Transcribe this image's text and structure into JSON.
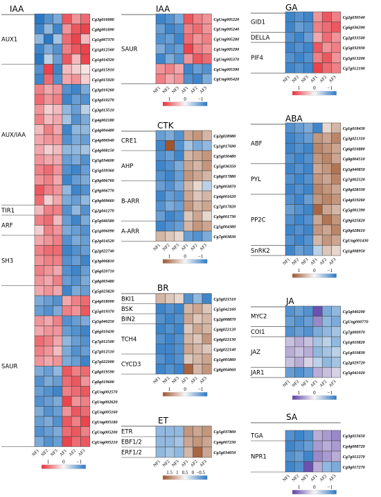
{
  "column_labels": [
    "NF1",
    "NF2",
    "NF3",
    "AF1",
    "AF2",
    "AF3"
  ],
  "palette": {
    "red": "#e8303a",
    "mid": "#f7f7f7",
    "blue": "#2b78c5",
    "brown": "#a0552d",
    "purple": "#5b3fa8"
  },
  "chart_data": [
    {
      "type": "heatmap",
      "title": "IAA",
      "groups": [
        {
          "label": "AUX1",
          "genes": [
            "Cg3g016080",
            "Cg8g001890",
            "Cg1g007370",
            "Cg1g012560",
            "Cg1g014320"
          ]
        },
        {
          "label": "AUX/IAA",
          "genes": [
            "Cg1g015910",
            "Cg1g015920",
            "Cg3g010260",
            "Cg3g010270",
            "Cg3g013510",
            "Cg4g002180",
            "Cg4g004480",
            "Cg4g006940",
            "Cg4g008150",
            "Cg5g034600",
            "Cg5g039360",
            "Cg9g006760",
            "Cg9g006770",
            "Cg9g009660"
          ]
        },
        {
          "label": "TIR1",
          "genes": [
            "Cg2g041270"
          ]
        },
        {
          "label": "ARF",
          "genes": [
            "Cg5g040580",
            "Cg1g006090"
          ]
        },
        {
          "label": "SH3",
          "genes": [
            "Cg2g014520",
            "Cg2g022740",
            "Cg3g006810",
            "Cg6g020710",
            "Cg8g003480"
          ]
        },
        {
          "label": "SAUR",
          "genes": [
            "Cg5g023820",
            "Cg4g018000",
            "Cg5g019370",
            "Cg5g040250",
            "Cg6g010430",
            "Cg7g012500",
            "Cg7g012510",
            "Cg7g022000",
            "Cg8g019590",
            "Cg8g019600",
            "CgUng002570",
            "CgUng002620",
            "CgUng005160",
            "CgUng005180",
            "CgUng005200",
            "CgUng005210"
          ]
        }
      ],
      "values": [
        [
          -1,
          -0.8,
          -0.6,
          0.8,
          0.5,
          0.7
        ],
        [
          -0.9,
          -0.5,
          -0.9,
          0.5,
          0.8,
          0.9
        ],
        [
          -0.5,
          -1,
          -0.4,
          0.7,
          0.9,
          0.3
        ],
        [
          -0.9,
          -0.6,
          -0.8,
          0.6,
          0.8,
          0.9
        ],
        [
          -1,
          -0.3,
          -0.7,
          0.8,
          0.3,
          0.9
        ],
        [
          -0.8,
          0.9,
          -0.9,
          0.3,
          0.2,
          0.1
        ],
        [
          -0.9,
          0.7,
          -0.8,
          0.4,
          0.5,
          0.2
        ],
        [
          0.6,
          0.4,
          0.5,
          -0.8,
          -0.9,
          -0.6
        ],
        [
          0.7,
          0.5,
          0.6,
          -0.9,
          -0.7,
          -0.8
        ],
        [
          0.5,
          0.2,
          0.3,
          -0.5,
          -0.7,
          -0.3
        ],
        [
          0.6,
          0.3,
          0.4,
          -0.4,
          -0.8,
          -0.6
        ],
        [
          0.3,
          0.6,
          0.4,
          -0.9,
          -0.5,
          -0.5
        ],
        [
          0.4,
          0.5,
          0.5,
          -0.8,
          -0.6,
          -0.7
        ],
        [
          0.4,
          0.2,
          0.3,
          -0.5,
          -0.5,
          -0.4
        ],
        [
          0.5,
          0.4,
          0.4,
          -0.7,
          -0.6,
          -0.8
        ],
        [
          0.6,
          0.7,
          0.5,
          -0.8,
          -0.9,
          -0.7
        ],
        [
          0.5,
          0.6,
          0.4,
          -0.9,
          -0.7,
          -0.6
        ],
        [
          0.8,
          0.6,
          0.5,
          -0.5,
          -0.9,
          -0.8
        ],
        [
          0.7,
          0.2,
          0.4,
          -0.6,
          -0.7,
          -0.5
        ],
        [
          0.3,
          0.6,
          0.6,
          -0.8,
          -0.5,
          -0.8
        ],
        [
          0.6,
          0.7,
          0.3,
          -0.7,
          -0.9,
          -0.6
        ],
        [
          0.2,
          0.6,
          0.5,
          -0.6,
          -0.7,
          -0.8
        ],
        [
          0.4,
          0.5,
          0.6,
          -0.8,
          -0.6,
          -0.7
        ],
        [
          0.6,
          0.7,
          0.7,
          -0.9,
          -0.8,
          -0.7
        ],
        [
          0.5,
          0.6,
          0.6,
          -0.8,
          -0.7,
          -0.9
        ],
        [
          0.6,
          0.5,
          0.4,
          -0.8,
          -0.9,
          -0.7
        ],
        [
          0.5,
          0.4,
          0.6,
          -0.7,
          -0.8,
          -0.6
        ],
        [
          0.4,
          0.5,
          0.4,
          -0.9,
          -0.6,
          -0.7
        ],
        [
          -0.6,
          -0.7,
          -0.8,
          0.4,
          0.6,
          0.7
        ],
        [
          -0.7,
          -0.8,
          -0.6,
          0.6,
          0.5,
          0.8
        ],
        [
          0.5,
          0.4,
          0.6,
          -0.8,
          -0.7,
          -0.6
        ],
        [
          0.4,
          0.5,
          0.5,
          -0.7,
          -0.8,
          -0.9
        ],
        [
          0.7,
          0.6,
          0.4,
          -0.5,
          -0.7,
          -0.8
        ],
        [
          0.6,
          0.5,
          0.3,
          -0.6,
          -0.8,
          -0.7
        ],
        [
          0.5,
          0.4,
          0.5,
          -0.6,
          -0.7,
          -0.9
        ],
        [
          -0.6,
          -0.7,
          -0.5,
          0.8,
          0.6,
          0.7
        ],
        [
          -0.8,
          -0.6,
          -0.7,
          0.7,
          0.8,
          0.5
        ],
        [
          -0.7,
          -0.8,
          -0.9,
          0.6,
          0.7,
          0.8
        ],
        [
          -0.8,
          -0.7,
          -0.6,
          0.9,
          0.5,
          0.6
        ],
        [
          -0.6,
          -0.8,
          -0.7,
          0.5,
          0.8,
          0.7
        ],
        [
          -0.7,
          -0.6,
          -0.8,
          0.8,
          0.6,
          0.9
        ],
        [
          -0.8,
          -0.7,
          -0.6,
          0.7,
          0.8,
          0.6
        ],
        [
          -0.6,
          -0.8,
          -0.7,
          0.9,
          0.7,
          0.8
        ]
      ],
      "legend": {
        "ticks": [
          "1",
          "0",
          "−1"
        ],
        "scale": "red-blue"
      }
    },
    {
      "type": "heatmap",
      "title": "IAA",
      "groups": [
        {
          "label": "SAUR",
          "genes": [
            "CgUng005220",
            "CgUng005240",
            "CgUng005280",
            "CgUng005290",
            "CgUng005370",
            "CgUng005390",
            "CgUng005420"
          ]
        }
      ],
      "values": [
        [
          -0.9,
          -0.8,
          -0.6,
          0.8,
          0.6,
          0.5
        ],
        [
          -0.7,
          -0.9,
          -0.8,
          0.6,
          0.7,
          0.5
        ],
        [
          -0.8,
          -0.7,
          -0.9,
          0.7,
          0.5,
          0.6
        ],
        [
          -0.6,
          -0.8,
          -0.7,
          0.9,
          0.6,
          0.5
        ],
        [
          -0.9,
          -0.6,
          -0.8,
          0.5,
          0.8,
          0.7
        ],
        [
          0.5,
          0.6,
          0.4,
          -0.9,
          -0.7,
          -0.8
        ],
        [
          0.6,
          0.4,
          0.5,
          -0.8,
          -0.9,
          -0.6
        ]
      ],
      "legend": {
        "ticks": [
          "1",
          "0",
          "−1"
        ],
        "scale": "red-blue"
      }
    },
    {
      "type": "heatmap",
      "title": "CTK",
      "groups": [
        {
          "label": "CRE1",
          "genes": [
            "Cg2g028980",
            "Cg1g017690"
          ]
        },
        {
          "label": "AHP",
          "genes": [
            "Cg5g030480",
            "Cg5g036350",
            "Cg8g017880"
          ]
        },
        {
          "label": "B-ARR",
          "genes": [
            "Cg9g003870",
            "Cg4g001620",
            "Cg7g017820",
            "Cg9g001730"
          ]
        },
        {
          "label": "A-ARR",
          "genes": [
            "Cg5g004380",
            "Cg7g003830"
          ]
        }
      ],
      "values": [
        [
          -0.7,
          -0.6,
          -0.8,
          0.5,
          0.6,
          0.4
        ],
        [
          -0.9,
          1.0,
          -0.8,
          -0.4,
          -0.6,
          -0.5
        ],
        [
          -0.8,
          -0.7,
          -0.9,
          0.4,
          0.5,
          0.6
        ],
        [
          -0.9,
          -0.8,
          -0.6,
          0.5,
          0.4,
          0.6
        ],
        [
          -0.8,
          -0.9,
          -0.7,
          0.6,
          0.5,
          0.4
        ],
        [
          -0.7,
          -0.8,
          -0.6,
          0.4,
          0.2,
          -0.3
        ],
        [
          -0.9,
          -0.7,
          -0.8,
          0.5,
          0.3,
          0.4
        ],
        [
          -0.8,
          -0.6,
          -0.7,
          0.6,
          0.4,
          0.5
        ],
        [
          -0.7,
          -0.9,
          -0.8,
          0.3,
          0.5,
          0.2
        ],
        [
          -0.9,
          -0.8,
          -0.7,
          0.4,
          0.6,
          0.5
        ],
        [
          0.4,
          0.3,
          0.2,
          -0.7,
          -0.8,
          -0.6
        ]
      ],
      "legend": {
        "ticks": [
          "1",
          "0",
          "−1"
        ],
        "scale": "brown-blue"
      }
    },
    {
      "type": "heatmap",
      "title": "BR",
      "groups": [
        {
          "label": "BKI1",
          "genes": [
            "Cg3g021510"
          ]
        },
        {
          "label": "BSK",
          "genes": [
            "Cg5g042160"
          ]
        },
        {
          "label": "BIN2",
          "genes": [
            "Cg2g008870"
          ]
        },
        {
          "label": "TCH4",
          "genes": [
            "Cg4g022120",
            "Cg4g022130",
            "Cg4g022140"
          ]
        },
        {
          "label": "CYCD3",
          "genes": [
            "Cg1g005860",
            "Cg8g004060"
          ]
        }
      ],
      "values": [
        [
          0.4,
          0.3,
          0.2,
          -0.8,
          -0.5,
          -0.9
        ],
        [
          -0.9,
          -0.8,
          -0.9,
          0.4,
          0.5,
          0.3
        ],
        [
          -0.8,
          -0.9,
          -0.8,
          0.5,
          0.3,
          0.4
        ],
        [
          -0.9,
          -0.8,
          -0.9,
          0.3,
          0.5,
          0.4
        ],
        [
          -0.8,
          -0.9,
          -0.8,
          0.4,
          0.3,
          0.6
        ],
        [
          -0.9,
          -0.9,
          -0.8,
          0.5,
          0.4,
          0.3
        ],
        [
          -0.8,
          -0.9,
          -0.8,
          0.3,
          0.4,
          0.5
        ],
        [
          -0.9,
          -0.8,
          -0.9,
          0.9,
          0.4,
          0.6
        ]
      ],
      "legend": {
        "ticks": [
          "1",
          "0",
          "−1"
        ],
        "scale": "brown-blue"
      }
    },
    {
      "type": "heatmap",
      "title": "ET",
      "groups": [
        {
          "label": "ETR",
          "genes": [
            "Cg5g037800"
          ]
        },
        {
          "label": "EBF1/2",
          "genes": [
            "Cg4g007230"
          ]
        },
        {
          "label": "ERF1/2",
          "genes": [
            "Cg5g034050"
          ]
        }
      ],
      "values": [
        [
          -0.5,
          -0.5,
          -0.5,
          0.6,
          0.5,
          0.6
        ],
        [
          -0.5,
          -0.5,
          -0.4,
          0.5,
          0.6,
          0.5
        ],
        [
          -0.5,
          -0.4,
          -0.5,
          0.4,
          0.9,
          0.5
        ]
      ],
      "legend": {
        "ticks": [
          "1.5",
          "1",
          "0.5",
          "0",
          "−0.5"
        ],
        "scale": "brown-blue"
      }
    },
    {
      "type": "heatmap",
      "title": "GA",
      "groups": [
        {
          "label": "GID1",
          "genes": [
            "Cg2g030540",
            "Cg6g036390"
          ]
        },
        {
          "label": "DELLA",
          "genes": [
            "Cg2g033500"
          ]
        },
        {
          "label": "PIF4",
          "genes": [
            "Cg5g032930",
            "Cg5g013200",
            "Cg7g012190"
          ]
        }
      ],
      "values": [
        [
          -0.9,
          -0.8,
          -0.9,
          0.5,
          0.8,
          0.6
        ],
        [
          -0.9,
          -0.7,
          -0.8,
          0.6,
          0.7,
          0.8
        ],
        [
          -0.8,
          -0.9,
          -0.7,
          0.4,
          0.7,
          0.5
        ],
        [
          -0.9,
          -0.8,
          -0.9,
          0.8,
          0.5,
          0.6
        ],
        [
          -0.8,
          -0.9,
          -0.8,
          0.6,
          0.8,
          0.5
        ],
        [
          -0.9,
          -0.8,
          -0.9,
          0.9,
          0.7,
          0.6
        ]
      ],
      "legend": {
        "ticks": [
          "1",
          "0",
          "−1"
        ],
        "scale": "red-blue"
      }
    },
    {
      "type": "heatmap",
      "title": "ABA",
      "groups": [
        {
          "label": "ABF",
          "genes": [
            "Cg1g018430",
            "Cg3g021310",
            "Cg6g016880",
            "Cg8g004510"
          ]
        },
        {
          "label": "PYL",
          "genes": [
            "Cg5g040850",
            "Cg7g002520",
            "Cg9g028330"
          ]
        },
        {
          "label": "PP2C",
          "genes": [
            "Cg4g019260",
            "Cg5g001390",
            "Cg9g025820",
            "Cg9g028610",
            "CgUng001430"
          ]
        },
        {
          "label": "SnRK2",
          "genes": [
            "Cg1g008950"
          ]
        }
      ],
      "values": [
        [
          -0.8,
          -0.7,
          -0.6,
          -0.9,
          0.2,
          0.4
        ],
        [
          -0.9,
          -0.8,
          -0.7,
          0.6,
          0.5,
          0.7
        ],
        [
          -0.9,
          -0.8,
          -0.9,
          0.7,
          0.6,
          0.5
        ],
        [
          -0.8,
          -0.9,
          -0.8,
          0.6,
          0.7,
          0.5
        ],
        [
          -0.9,
          -0.8,
          -0.9,
          0.5,
          0.6,
          0.8
        ],
        [
          -0.8,
          -0.9,
          -0.8,
          0.6,
          0.5,
          0.7
        ],
        [
          -0.9,
          -0.8,
          -0.9,
          0.7,
          0.6,
          0.5
        ],
        [
          -0.8,
          -0.9,
          -0.7,
          0.6,
          0.7,
          0.6
        ],
        [
          -0.7,
          -0.8,
          -0.9,
          0.9,
          0.5,
          0.4
        ],
        [
          -0.8,
          -0.9,
          -0.8,
          0.5,
          0.8,
          0.6
        ],
        [
          -0.9,
          -0.8,
          -0.9,
          0.6,
          0.5,
          0.7
        ],
        [
          -0.8,
          -0.9,
          -0.8,
          0.4,
          0.6,
          0.5
        ],
        [
          -0.9,
          -0.7,
          -0.8,
          -0.3,
          0.3,
          0.2
        ]
      ],
      "legend": {
        "ticks": [
          "1",
          "0",
          "−1"
        ],
        "scale": "brown-blue"
      }
    },
    {
      "type": "heatmap",
      "title": "JA",
      "groups": [
        {
          "label": "MYC2",
          "genes": [
            "Cg5g040200",
            "CgUng000770"
          ]
        },
        {
          "label": "COI1",
          "genes": [
            "Cg7g000970"
          ]
        },
        {
          "label": "JAZ",
          "genes": [
            "Cg1g010820",
            "Cg1g010830",
            "Cg2g029720"
          ]
        },
        {
          "label": "JAR1",
          "genes": [
            "Cg5g041020"
          ]
        }
      ],
      "values": [
        [
          -0.8,
          -0.7,
          -0.8,
          0.9,
          -0.6,
          -0.5
        ],
        [
          -0.7,
          -0.8,
          -0.7,
          0.6,
          -0.5,
          -0.6
        ],
        [
          -0.8,
          -0.7,
          -0.8,
          -0.6,
          -0.5,
          -0.4
        ],
        [
          0.3,
          0.4,
          0.3,
          -0.4,
          -0.3,
          -0.5
        ],
        [
          0.4,
          0.3,
          0.4,
          -0.5,
          -0.4,
          -0.3
        ],
        [
          0.3,
          0.4,
          0.2,
          -0.3,
          -0.5,
          -0.4
        ],
        [
          -0.7,
          -0.8,
          -0.7,
          0.4,
          0.3,
          0.2
        ]
      ],
      "legend": {
        "ticks": [
          "1",
          "0",
          "−1"
        ],
        "scale": "purple-blue"
      }
    },
    {
      "type": "heatmap",
      "title": "SA",
      "groups": [
        {
          "label": "TGA",
          "genes": [
            "Cg3g015650"
          ]
        },
        {
          "label": "NPR1",
          "genes": [
            "Cg4g008720",
            "Cg7g012270",
            "Cg9g017270"
          ]
        }
      ],
      "values": [
        [
          -0.8,
          -0.9,
          -0.8,
          0.4,
          0.5,
          0.6
        ],
        [
          -0.9,
          -0.8,
          -0.7,
          0.5,
          0.4,
          0.5
        ],
        [
          -0.8,
          -0.7,
          -0.9,
          0.6,
          0.5,
          0.4
        ],
        [
          -0.9,
          -0.8,
          0.9,
          0.4,
          -0.5,
          -0.6
        ]
      ],
      "legend": {
        "ticks": [
          "1",
          "0",
          "−1"
        ],
        "scale": "purple-blue"
      }
    }
  ]
}
